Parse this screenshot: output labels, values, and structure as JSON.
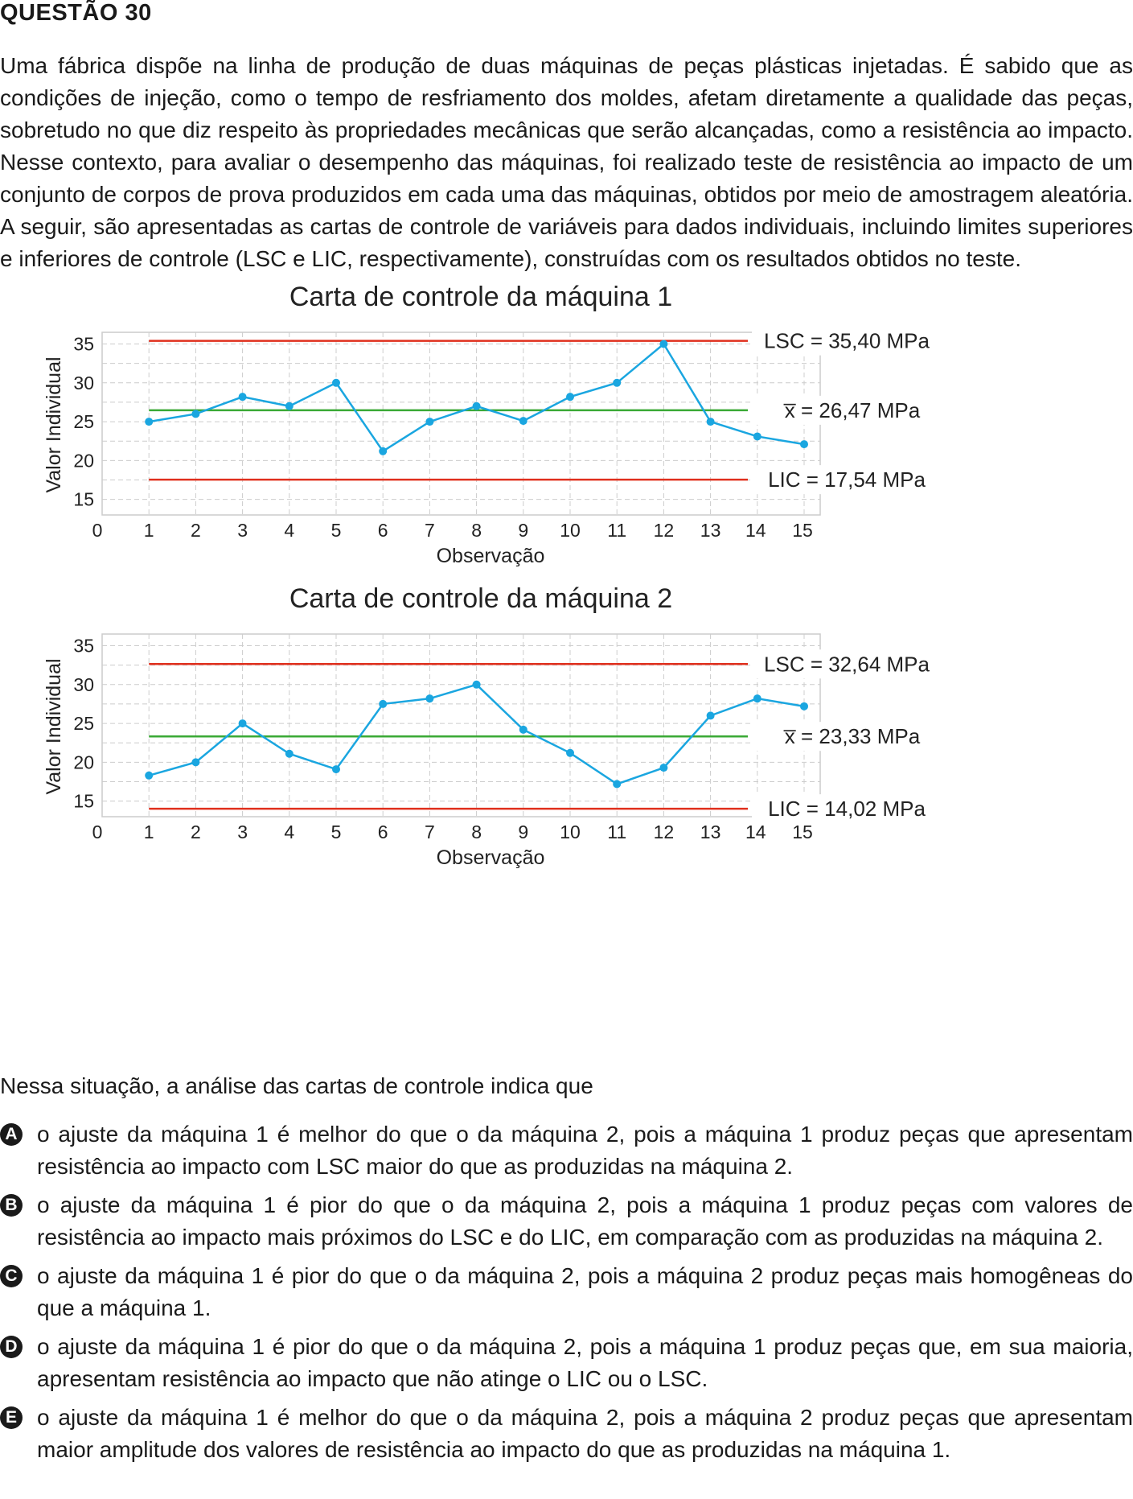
{
  "question": {
    "title": "QUESTÃO 30",
    "stem": "Uma fábrica dispõe na linha de produção de duas máquinas de peças plásticas injetadas. É sabido que as condições de injeção, como o tempo de resfriamento dos moldes, afetam diretamente a qualidade das peças, sobretudo no que diz respeito às propriedades mecânicas que serão alcançadas, como a resistência ao impacto. Nesse contexto, para avaliar o desempenho das máquinas, foi realizado teste de resistência ao impacto de um conjunto de corpos de prova produzidos em cada uma das máquinas, obtidos por meio de amostragem aleatória. A seguir, são apresentadas as cartas de controle de variáveis para dados individuais, incluindo limites superiores e inferiores de controle (LSC e LIC, respectivamente), construídas com os resultados obtidos no teste.",
    "lead": "Nessa situação, a análise das cartas de controle indica que",
    "options": [
      {
        "letter": "A",
        "text": "o ajuste da máquina 1 é melhor do que o da máquina 2, pois a máquina 1 produz peças que apresentam resistência ao impacto com LSC maior do que as produzidas na máquina 2."
      },
      {
        "letter": "B",
        "text": "o ajuste da máquina 1 é pior do que o da máquina 2, pois a máquina 1 produz peças com valores de resistência ao impacto mais próximos do LSC e do LIC, em comparação com as produzidas na máquina 2."
      },
      {
        "letter": "C",
        "text": "o ajuste da máquina 1 é pior do que o da máquina 2, pois a máquina 2 produz peças mais homogêneas do que a máquina 1."
      },
      {
        "letter": "D",
        "text": "o ajuste da máquina 1 é pior do que o da máquina 2, pois a máquina 1 produz peças que, em sua maioria, apresentam resistência ao impacto que não atinge o LIC ou o LSC."
      },
      {
        "letter": "E",
        "text": "o ajuste da máquina 1 é melhor do que o da máquina 2, pois a máquina 2 produz peças que apresentam maior amplitude dos valores de resistência ao impacto do que as produzidas na máquina 1."
      }
    ]
  },
  "colors": {
    "series": "#1aa6e0",
    "limit": "#e0301e",
    "mean": "#3aa935",
    "grid": "#cccccc",
    "text": "#1a1a1a"
  },
  "chart_data": [
    {
      "type": "line",
      "title": "Carta de controle da máquina 1",
      "xlabel": "Observação",
      "ylabel": "Valor Individual",
      "x": [
        1,
        2,
        3,
        4,
        5,
        6,
        7,
        8,
        9,
        10,
        11,
        12,
        13,
        14,
        15
      ],
      "x_ticks": [
        "0",
        "1",
        "2",
        "3",
        "4",
        "5",
        "6",
        "7",
        "8",
        "9",
        "10",
        "11",
        "12",
        "13",
        "14",
        "15"
      ],
      "y_ticks": [
        15,
        20,
        25,
        30,
        35
      ],
      "xlim": [
        0,
        15
      ],
      "ylim": [
        13,
        36.5
      ],
      "values": [
        25,
        26,
        28.2,
        27,
        30,
        21.2,
        25,
        27,
        25.1,
        28.2,
        30,
        35,
        25,
        23.1,
        22.1
      ],
      "lsc": 35.4,
      "mean": 26.47,
      "lic": 17.54,
      "lsc_label": "LSC = 35,40 MPa",
      "mean_label": "x̅ = 26,47 MPa",
      "lic_label": "LIC = 17,54 MPa"
    },
    {
      "type": "line",
      "title": "Carta de controle da máquina 2",
      "xlabel": "Observação",
      "ylabel": "Valor Individual",
      "x": [
        1,
        2,
        3,
        4,
        5,
        6,
        7,
        8,
        9,
        10,
        11,
        12,
        13,
        14,
        15
      ],
      "x_ticks": [
        "0",
        "1",
        "2",
        "3",
        "4",
        "5",
        "6",
        "7",
        "8",
        "9",
        "10",
        "11",
        "12",
        "13",
        "14",
        "15"
      ],
      "y_ticks": [
        15,
        20,
        25,
        30,
        35
      ],
      "xlim": [
        0,
        15
      ],
      "ylim": [
        13,
        36.5
      ],
      "values": [
        18.3,
        20,
        25,
        21.1,
        19.1,
        27.5,
        28.2,
        30,
        24.2,
        21.2,
        17.2,
        19.3,
        26,
        28.2,
        27.2
      ],
      "lsc": 32.64,
      "mean": 23.33,
      "lic": 14.02,
      "lsc_label": "LSC = 32,64 MPa",
      "mean_label": "x̅ = 23,33 MPa",
      "lic_label": "LIC = 14,02 MPa"
    }
  ]
}
